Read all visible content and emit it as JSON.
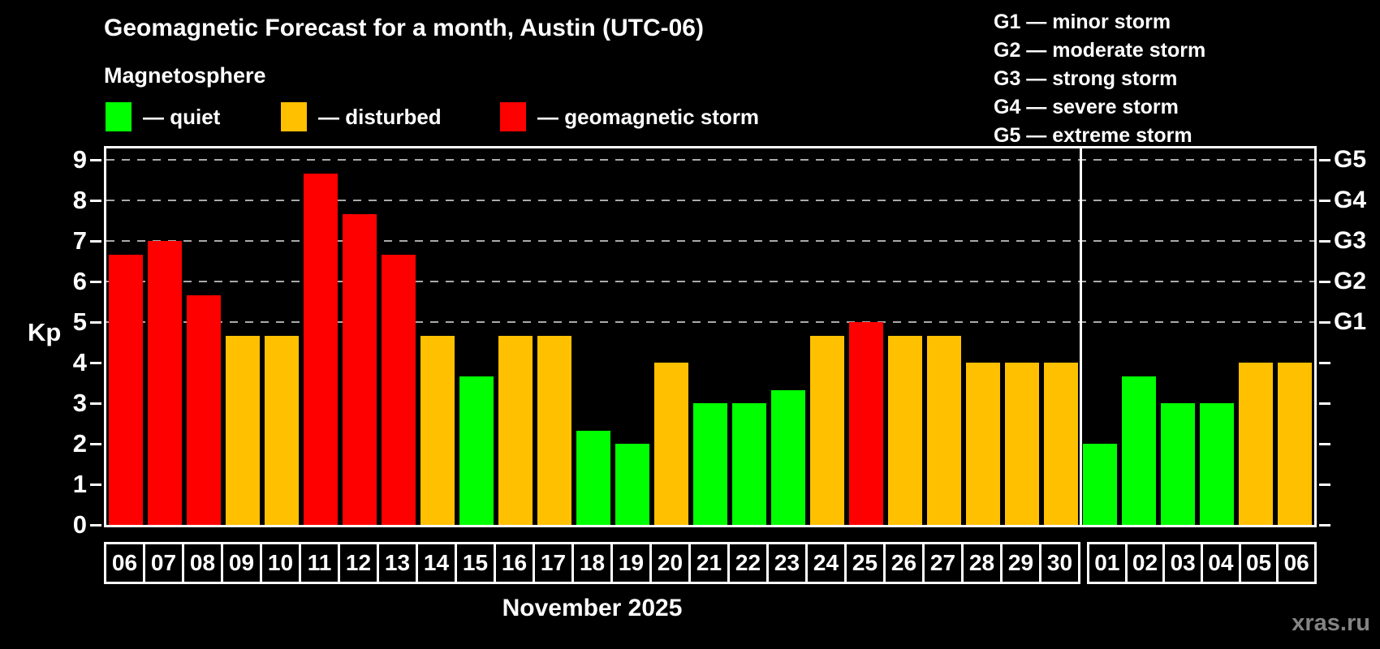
{
  "title": "Geomagnetic Forecast for a month, Austin (UTC-06)",
  "subtitle": "Magnetosphere",
  "legend": {
    "items": [
      {
        "name": "quiet",
        "label": "— quiet",
        "color": "#00ff00"
      },
      {
        "name": "disturbed",
        "label": "— disturbed",
        "color": "#ffc000"
      },
      {
        "name": "storm",
        "label": "— geomagnetic storm",
        "color": "#ff0000"
      }
    ]
  },
  "g_scale_legend": [
    "G1 — minor storm",
    "G2 — moderate storm",
    "G3 — strong storm",
    "G4 — severe storm",
    "G5 — extreme storm"
  ],
  "watermark": "xras.ru",
  "chart_data": {
    "type": "bar",
    "title": "Geomagnetic Forecast for a month, Austin (UTC-06)",
    "ylabel": "Kp",
    "month_label": "November 2025",
    "ylim": [
      0,
      9.4
    ],
    "yticks": [
      0,
      1,
      2,
      3,
      4,
      5,
      6,
      7,
      8,
      9
    ],
    "grid_values": [
      5,
      6,
      7,
      8,
      9
    ],
    "grid_style": "dashed",
    "legend_position": "top",
    "right_axis_labels": [
      {
        "label": "G1",
        "value": 5
      },
      {
        "label": "G2",
        "value": 6
      },
      {
        "label": "G3",
        "value": 7
      },
      {
        "label": "G4",
        "value": 8
      },
      {
        "label": "G5",
        "value": 9
      }
    ],
    "month_separator_after_index": 24,
    "categories": [
      "06",
      "07",
      "08",
      "09",
      "10",
      "11",
      "12",
      "13",
      "14",
      "15",
      "16",
      "17",
      "18",
      "19",
      "20",
      "21",
      "22",
      "23",
      "24",
      "25",
      "26",
      "27",
      "28",
      "29",
      "30",
      "01",
      "02",
      "03",
      "04",
      "05",
      "06"
    ],
    "values": [
      6.67,
      7,
      5.67,
      4.67,
      4.67,
      8.67,
      7.67,
      6.67,
      4.67,
      3.67,
      4.67,
      4.67,
      2.33,
      2,
      4,
      3,
      3,
      3.33,
      4.67,
      5,
      4.67,
      4.67,
      4,
      4,
      4,
      2,
      3.67,
      3,
      3,
      4,
      4
    ],
    "statuses": [
      "storm",
      "storm",
      "storm",
      "disturbed",
      "disturbed",
      "storm",
      "storm",
      "storm",
      "disturbed",
      "quiet",
      "disturbed",
      "disturbed",
      "quiet",
      "quiet",
      "disturbed",
      "quiet",
      "quiet",
      "quiet",
      "disturbed",
      "storm",
      "disturbed",
      "disturbed",
      "disturbed",
      "disturbed",
      "disturbed",
      "quiet",
      "quiet",
      "quiet",
      "quiet",
      "disturbed",
      "disturbed"
    ],
    "status_colors": {
      "quiet": "#00ff00",
      "disturbed": "#ffc000",
      "storm": "#ff0000"
    }
  }
}
